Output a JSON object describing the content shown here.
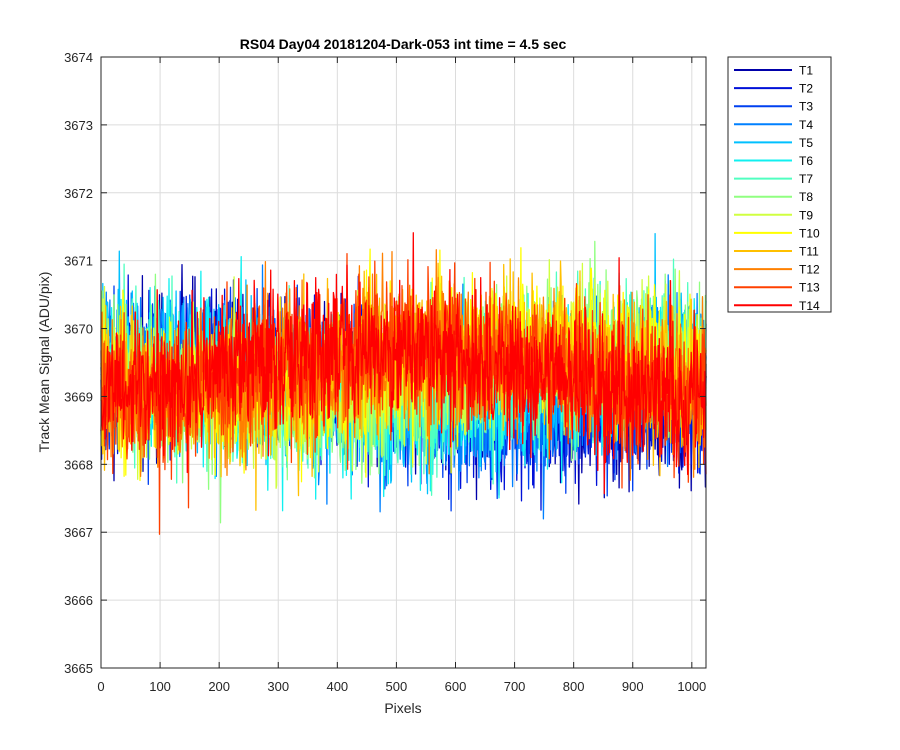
{
  "chart_data": {
    "type": "line",
    "title": "RS04 Day04 20181204-Dark-053 int time = 4.5 sec",
    "xlabel": "Pixels",
    "ylabel": "Track Mean Signal (ADU/pix)",
    "xlim": [
      0,
      1024
    ],
    "ylim": [
      3665,
      3674
    ],
    "xticks": [
      0,
      100,
      200,
      300,
      400,
      500,
      600,
      700,
      800,
      900,
      1000
    ],
    "yticks": [
      3665,
      3666,
      3667,
      3668,
      3669,
      3670,
      3671,
      3672,
      3673,
      3674
    ],
    "grid": true,
    "legend_position": "outside-top-right",
    "x_points": 1024,
    "series": [
      {
        "name": "T1",
        "color": "#0000aa",
        "mean": 3669.1,
        "spread": 0.95
      },
      {
        "name": "T2",
        "color": "#0010d8",
        "mean": 3669.1,
        "spread": 0.95
      },
      {
        "name": "T3",
        "color": "#0040f0",
        "mean": 3669.15,
        "spread": 0.95
      },
      {
        "name": "T4",
        "color": "#0080ff",
        "mean": 3669.2,
        "spread": 0.95
      },
      {
        "name": "T5",
        "color": "#00c0ff",
        "mean": 3669.2,
        "spread": 0.95
      },
      {
        "name": "T6",
        "color": "#10f0f0",
        "mean": 3669.25,
        "spread": 0.95
      },
      {
        "name": "T7",
        "color": "#50ffc0",
        "mean": 3669.25,
        "spread": 0.95
      },
      {
        "name": "T8",
        "color": "#90ff80",
        "mean": 3669.3,
        "spread": 0.95
      },
      {
        "name": "T9",
        "color": "#d0ff40",
        "mean": 3669.3,
        "spread": 0.95
      },
      {
        "name": "T10",
        "color": "#ffff00",
        "mean": 3669.35,
        "spread": 0.95
      },
      {
        "name": "T11",
        "color": "#ffc000",
        "mean": 3669.35,
        "spread": 0.95
      },
      {
        "name": "T12",
        "color": "#ff8000",
        "mean": 3669.35,
        "spread": 0.95
      },
      {
        "name": "T13",
        "color": "#ff4000",
        "mean": 3669.35,
        "spread": 0.95
      },
      {
        "name": "T14",
        "color": "#ff0000",
        "mean": 3669.35,
        "spread": 0.95
      }
    ]
  }
}
